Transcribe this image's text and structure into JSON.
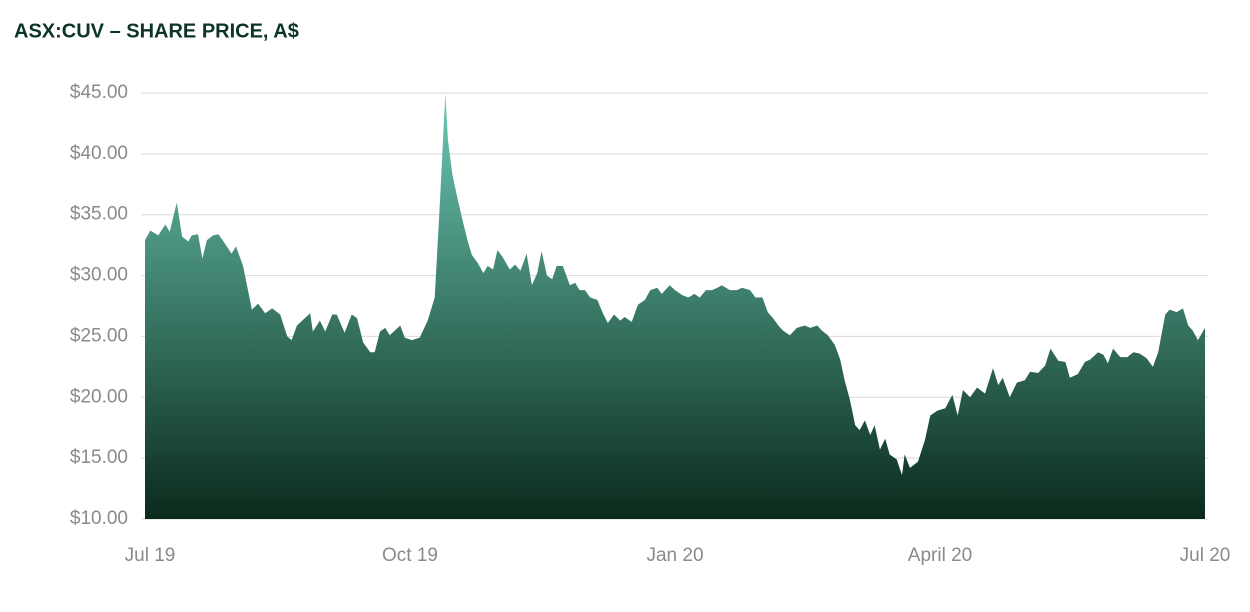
{
  "chart_data": {
    "type": "area",
    "title": "ASX:CUV – SHARE PRICE, A$",
    "color_top": "#6ccab4",
    "color_bottom": "#0a2a1c",
    "grid": true,
    "xlim": [
      0,
      12
    ],
    "xticks": [
      {
        "value": 0,
        "label": "Jul 19"
      },
      {
        "value": 3,
        "label": "Oct 19"
      },
      {
        "value": 6,
        "label": "Jan 20"
      },
      {
        "value": 9,
        "label": "April 20"
      },
      {
        "value": 12,
        "label": "Jul 20"
      }
    ],
    "ylim": [
      10,
      45
    ],
    "yticks": [
      {
        "value": 10,
        "label": "$10.00"
      },
      {
        "value": 15,
        "label": "$15.00"
      },
      {
        "value": 20,
        "label": "$20.00"
      },
      {
        "value": 25,
        "label": "$25.00"
      },
      {
        "value": 30,
        "label": "$30.00"
      },
      {
        "value": 35,
        "label": "$35.00"
      },
      {
        "value": 40,
        "label": "$40.00"
      },
      {
        "value": 45,
        "label": "$45.00"
      }
    ],
    "x": [
      0,
      0.06,
      0.15,
      0.23,
      0.28,
      0.36,
      0.42,
      0.49,
      0.53,
      0.6,
      0.65,
      0.7,
      0.77,
      0.83,
      0.88,
      0.98,
      1.03,
      1.11,
      1.21,
      1.28,
      1.36,
      1.44,
      1.53,
      1.61,
      1.66,
      1.72,
      1.81,
      1.87,
      1.9,
      1.98,
      2.04,
      2.12,
      2.17,
      2.26,
      2.34,
      2.4,
      2.47,
      2.55,
      2.6,
      2.66,
      2.72,
      2.77,
      2.83,
      2.89,
      2.94,
      3.02,
      3.11,
      3.2,
      3.28,
      3.34,
      3.4,
      3.43,
      3.48,
      3.53,
      3.59,
      3.65,
      3.7,
      3.77,
      3.83,
      3.88,
      3.94,
      3.99,
      4.05,
      4.13,
      4.19,
      4.25,
      4.32,
      4.38,
      4.44,
      4.49,
      4.55,
      4.61,
      4.66,
      4.73,
      4.81,
      4.87,
      4.92,
      4.98,
      5.04,
      5.12,
      5.19,
      5.24,
      5.31,
      5.38,
      5.43,
      5.51,
      5.58,
      5.66,
      5.72,
      5.8,
      5.85,
      5.94,
      6.0,
      6.08,
      6.15,
      6.22,
      6.28,
      6.35,
      6.42,
      6.48,
      6.53,
      6.62,
      6.7,
      6.76,
      6.85,
      6.91,
      6.99,
      7.05,
      7.11,
      7.17,
      7.22,
      7.3,
      7.38,
      7.47,
      7.53,
      7.61,
      7.66,
      7.73,
      7.81,
      7.87,
      7.92,
      7.98,
      8.04,
      8.09,
      8.15,
      8.21,
      8.26,
      8.32,
      8.38,
      8.43,
      8.51,
      8.57,
      8.6,
      8.66,
      8.75,
      8.83,
      8.89,
      8.97,
      9.06,
      9.14,
      9.2,
      9.26,
      9.34,
      9.42,
      9.51,
      9.6,
      9.66,
      9.71,
      9.79,
      9.87,
      9.96,
      10.02,
      10.11,
      10.19,
      10.25,
      10.34,
      10.42,
      10.47,
      10.56,
      10.64,
      10.7,
      10.79,
      10.85,
      10.9,
      10.96,
      11.04,
      11.12,
      11.19,
      11.26,
      11.34,
      11.41,
      11.47,
      11.55,
      11.6,
      11.68,
      11.75,
      11.81,
      11.86,
      11.92,
      12.0
    ],
    "values": [
      32.9,
      33.7,
      33.3,
      34.2,
      33.6,
      36.0,
      33.2,
      32.8,
      33.3,
      33.4,
      31.4,
      32.9,
      33.3,
      33.4,
      32.9,
      31.8,
      32.4,
      30.8,
      27.2,
      27.7,
      26.9,
      27.3,
      26.8,
      25.0,
      24.7,
      25.9,
      26.5,
      26.9,
      25.4,
      26.3,
      25.4,
      26.8,
      26.8,
      25.3,
      26.8,
      26.5,
      24.5,
      23.7,
      23.7,
      25.4,
      25.7,
      25.1,
      25.5,
      25.9,
      24.9,
      24.7,
      24.9,
      26.3,
      28.2,
      36.2,
      45.0,
      41.1,
      38.3,
      36.6,
      34.7,
      32.9,
      31.7,
      31.0,
      30.2,
      30.8,
      30.5,
      32.1,
      31.5,
      30.5,
      30.9,
      30.4,
      31.8,
      29.2,
      30.2,
      32.0,
      30.0,
      29.7,
      30.8,
      30.8,
      29.2,
      29.4,
      28.8,
      28.8,
      28.2,
      28.0,
      26.8,
      26.1,
      26.8,
      26.3,
      26.6,
      26.2,
      27.6,
      28.0,
      28.8,
      29.0,
      28.5,
      29.2,
      28.8,
      28.4,
      28.2,
      28.5,
      28.2,
      28.8,
      28.8,
      29.0,
      29.2,
      28.8,
      28.8,
      29.0,
      28.8,
      28.2,
      28.2,
      27.0,
      26.5,
      25.9,
      25.5,
      25.1,
      25.7,
      25.9,
      25.7,
      25.9,
      25.5,
      25.1,
      24.3,
      23.1,
      21.4,
      19.8,
      17.7,
      17.3,
      18.1,
      16.9,
      17.7,
      15.7,
      16.6,
      15.3,
      14.9,
      13.6,
      15.3,
      14.2,
      14.7,
      16.5,
      18.5,
      18.9,
      19.1,
      20.2,
      18.5,
      20.6,
      20.0,
      20.8,
      20.3,
      22.4,
      21.0,
      21.6,
      20.0,
      21.2,
      21.4,
      22.1,
      22.0,
      22.6,
      24.0,
      23.0,
      22.9,
      21.6,
      21.9,
      22.9,
      23.1,
      23.7,
      23.5,
      22.8,
      24.0,
      23.3,
      23.3,
      23.7,
      23.6,
      23.2,
      22.5,
      23.7,
      26.8,
      27.2,
      27.0,
      27.3,
      25.9,
      25.5,
      24.7,
      25.7
    ]
  }
}
